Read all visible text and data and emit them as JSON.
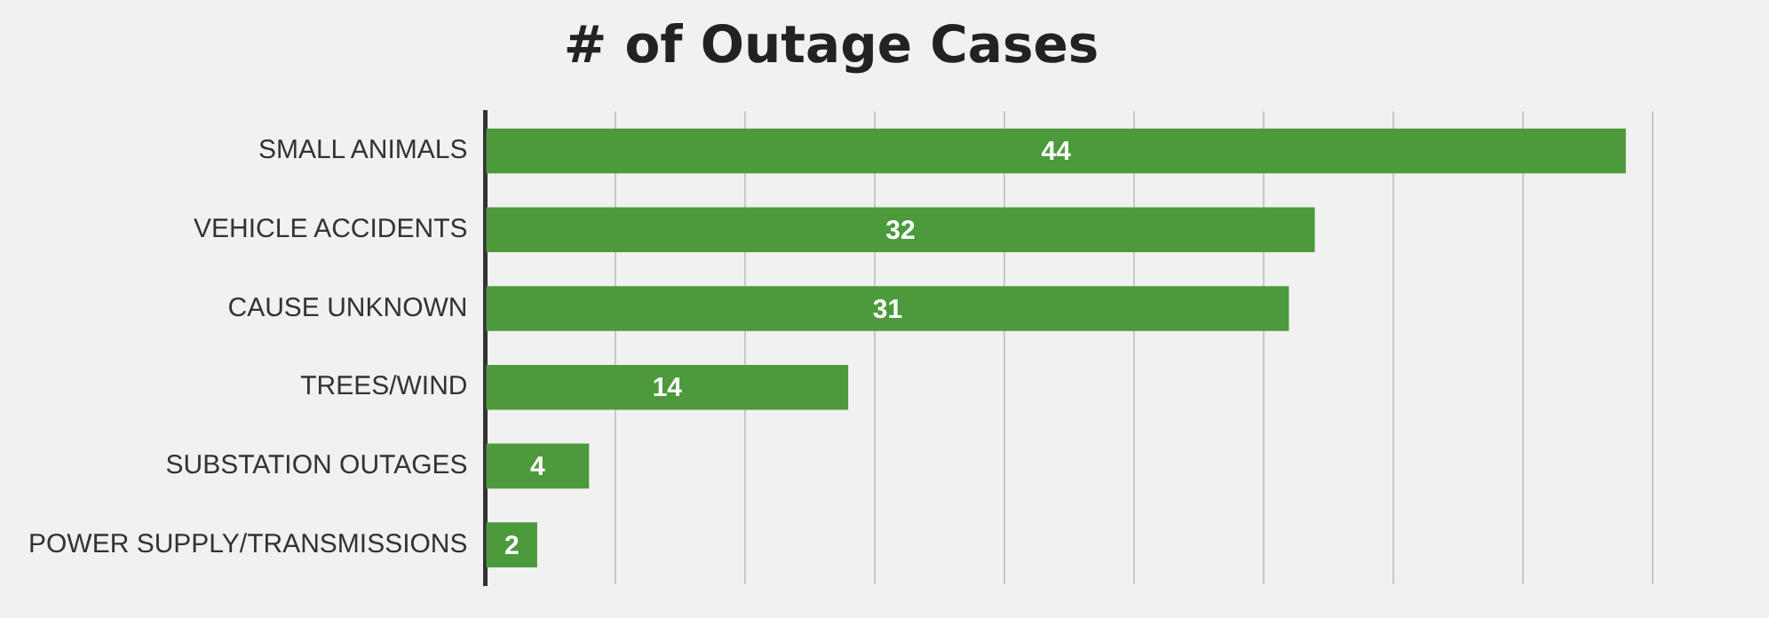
{
  "chart_data": {
    "type": "bar",
    "orientation": "horizontal",
    "title": "# of Outage Cases",
    "categories": [
      "SMALL ANIMALS",
      "VEHICLE ACCIDENTS",
      "CAUSE UNKNOWN",
      "TREES/WIND",
      "SUBSTATION OUTAGES",
      "POWER SUPPLY/TRANSMISSIONS"
    ],
    "values": [
      44,
      32,
      31,
      14,
      4,
      2
    ],
    "color": "#4c9a3c",
    "xlim": [
      0,
      45
    ],
    "xticks": [
      {
        "value": 0,
        "label": null
      },
      {
        "value": 5,
        "label": null
      },
      {
        "value": 10,
        "label": null
      },
      {
        "value": 15,
        "label": null
      },
      {
        "value": 20,
        "label": null
      },
      {
        "value": 25,
        "label": null
      },
      {
        "value": 30,
        "label": null
      },
      {
        "value": 35,
        "label": null
      },
      {
        "value": 40,
        "label": null
      },
      {
        "value": 45,
        "label": null
      }
    ],
    "grid": "x",
    "tick_labels": "y",
    "data_labels": true
  }
}
